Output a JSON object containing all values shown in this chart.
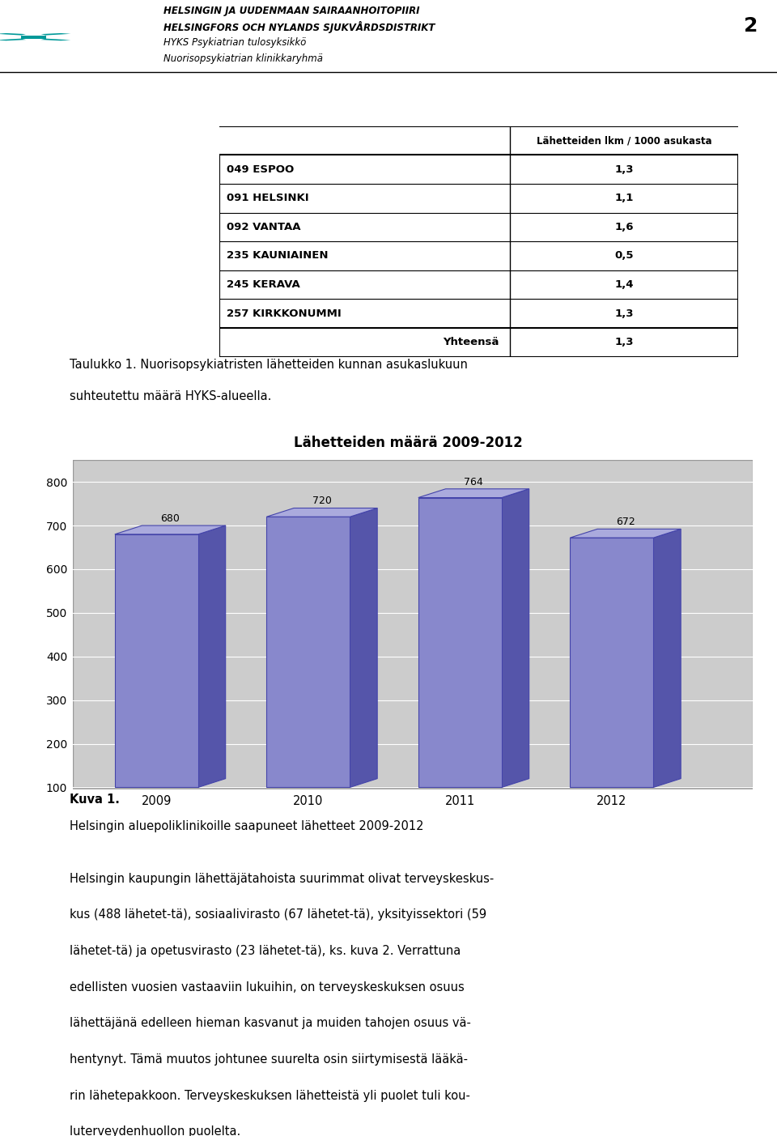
{
  "header_lines": [
    "HELSINGIN JA UUDENMAAN SAIRAANHOITOPIIRI",
    "HELSINGFORS OCH NYLANDS SJUKVÅRDSDISTRIKT",
    "HYKS Psykiatrian tulosyksikkö",
    "Nuorisopsykiatrian klinikkaryhä"
  ],
  "page_number": "2",
  "table_header": "Lähetteiden lkm / 1000 asukasta",
  "table_rows": [
    [
      "049 ESPOO",
      "1,3"
    ],
    [
      "091 HELSINKI",
      "1,1"
    ],
    [
      "092 VANTAA",
      "1,6"
    ],
    [
      "235 KAUNIAINEN",
      "0,5"
    ],
    [
      "245 KERAVA",
      "1,4"
    ],
    [
      "257 KIRKKONUMMI",
      "1,3"
    ]
  ],
  "table_footer_label": "Yhteensä",
  "table_footer_value": "1,3",
  "taulukko_text_line1": "Taulukko 1. Nuorisopsykiatristen lähetteiden kunnan asukaslukuun",
  "taulukko_text_line2": "suhteutettu määrä HYKS-alueella.",
  "chart_title": "Lähetteiden määrä 2009-2012",
  "years": [
    "2009",
    "2010",
    "2011",
    "2012"
  ],
  "values": [
    680,
    720,
    764,
    672
  ],
  "bar_color_face": "#8888cc",
  "bar_color_edge": "#4444aa",
  "bar_color_side": "#5555aa",
  "bar_color_top": "#aaaadd",
  "chart_bg_outer": "#bbbbbb",
  "chart_bg_inner": "#cccccc",
  "chart_floor_color": "#aaaaaa",
  "ylim_min": 100,
  "ylim_max": 850,
  "yticks": [
    100,
    200,
    300,
    400,
    500,
    600,
    700,
    800
  ],
  "kuva_label": "Kuva 1.",
  "body_line1": "Helsingin aluepoliklinikoille saapuneet lähetteet 2009-2012",
  "body_para": "Helsingin kaupungin lähettäjätahoista suurimmat olivat terveyskeskus (488 lähetet-\ntä), sosiaalivirasto (67 lähetet-\ntä), yksityissektori (59 lähetet-\ntä) ja opetusvirasto (23 lähetet-\ntä), ks. kuva 2. Verrattuna edellisten vuosien vastaaviin lukuihin, on terveyskeskuksen osuus lähettäjänä edelleen hieman kasvanut ja muiden tahojen osuus vähentynyt. Tämä muutos johtunee suurelta osin siirtymisestä lääkärin lähetepakkoon. Terveyskeskuksen lähetteistä yli puolet tuli kouluterveydenhuollon puolelta.",
  "body_lines": [
    "Helsingin kaupungin lähettäjätahoista suurimmat olivat terveyskeskus-",
    "kus (488 lähetet-tä), sosiaalivirasto (67 lähetet-tä), yksityissektori (59",
    "lähetet-tä) ja opetusvirasto (23 lähetet-tä), ks. kuva 2. Verrattuna",
    "edellisten vuosien vastaaviin lukuihin, on terveyskeskuksen osuus",
    "lähettäjänä edelleen hieman kasvanut ja muiden tahojen osuus vä-",
    "hentynyt. Tämä muutos johtunee suurelta osin siirtymisestä lääkä-",
    "rin lähetepakkoon. Terveyskeskuksen lähetteistä yli puolet tuli kou-",
    "luterveydenhuollon puolelta."
  ]
}
